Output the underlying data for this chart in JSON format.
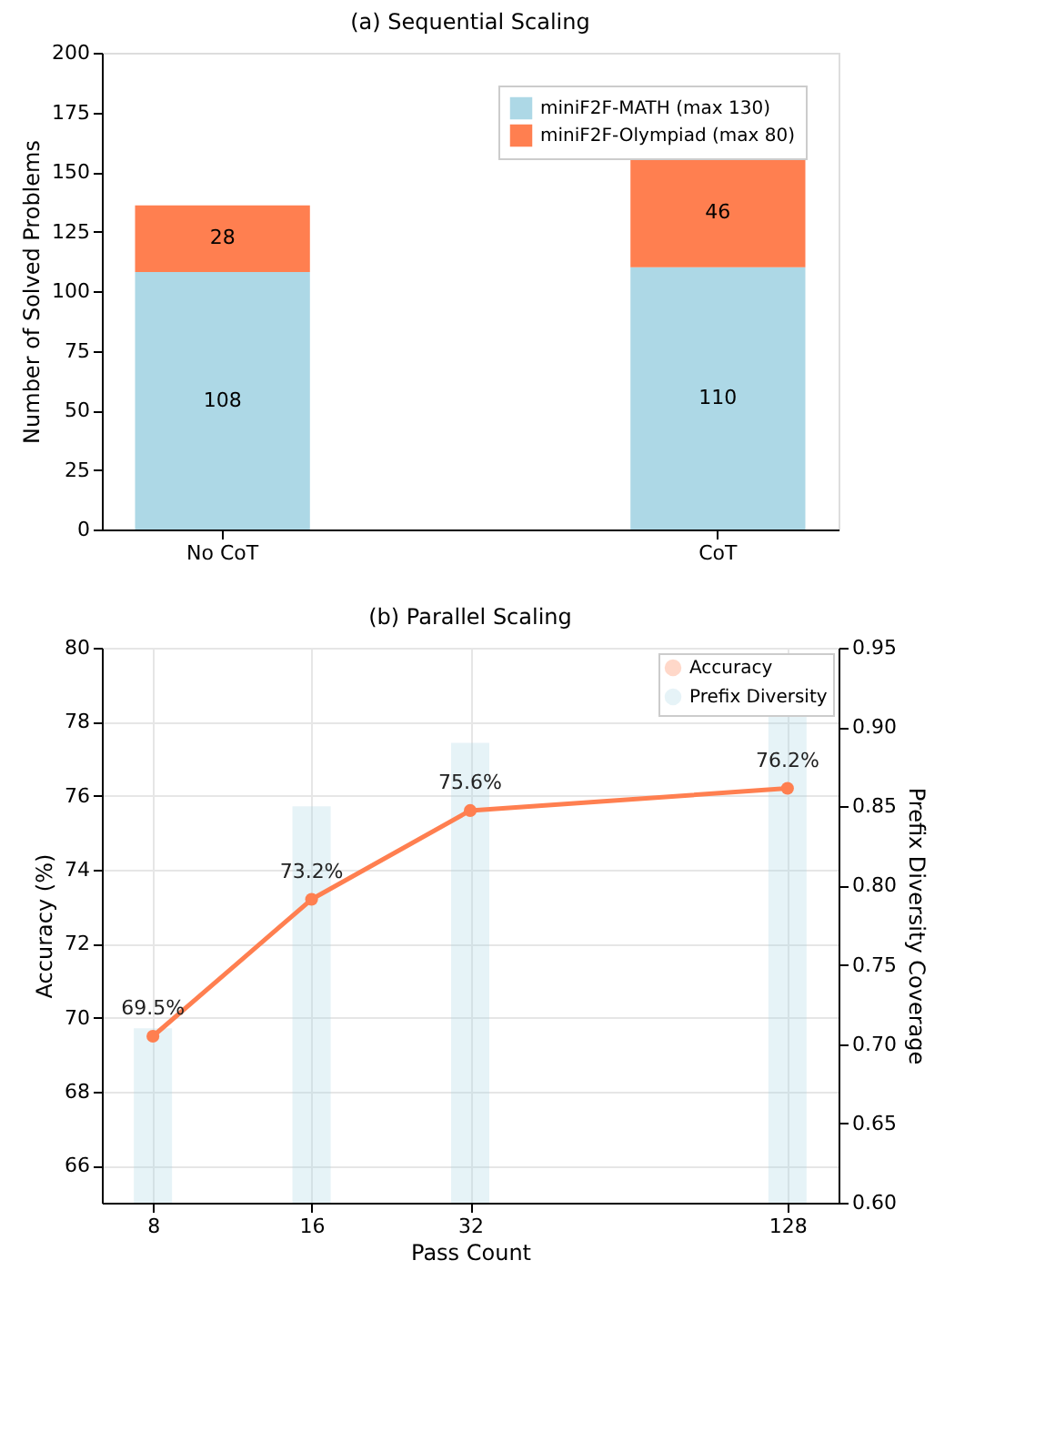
{
  "chart_data": [
    {
      "type": "bar",
      "title": "(a) Sequential Scaling",
      "ylabel": "Number of Solved Problems",
      "categories": [
        "No CoT",
        "CoT"
      ],
      "stacked": true,
      "data_labels": true,
      "legend": "top right",
      "ylim": [
        0,
        200
      ],
      "yticks": [
        0,
        25,
        50,
        75,
        100,
        125,
        150,
        175,
        200
      ],
      "series": [
        {
          "name": "miniF2F-MATH (max 130)",
          "color": "#add8e6",
          "values": [
            108,
            110
          ]
        },
        {
          "name": "miniF2F-Olympiad (max 80)",
          "color": "#ff7f50",
          "values": [
            28,
            46
          ]
        }
      ]
    },
    {
      "type": "line",
      "title": "(b) Parallel Scaling",
      "xlabel": "Pass Count",
      "ylabel": "Accuracy (%)",
      "y2label": "Prefix Diversity Coverage",
      "x": [
        8,
        16,
        32,
        128
      ],
      "log": "x",
      "xlim": [
        6.4,
        160
      ],
      "xticks": [
        8,
        16,
        32,
        128
      ],
      "ylim": [
        65,
        80
      ],
      "yticks": [
        66,
        68,
        70,
        72,
        74,
        76,
        78,
        80
      ],
      "y2lim": [
        0.6,
        0.95
      ],
      "y2ticks": [
        {
          "value": 0.6,
          "label": "0.60"
        },
        {
          "value": 0.65,
          "label": "0.65"
        },
        {
          "value": 0.7,
          "label": "0.70"
        },
        {
          "value": 0.75,
          "label": "0.75"
        },
        {
          "value": 0.8,
          "label": "0.80"
        },
        {
          "value": 0.85,
          "label": "0.85"
        },
        {
          "value": 0.9,
          "label": "0.90"
        },
        {
          "value": 0.95,
          "label": "0.95"
        }
      ],
      "grid": true,
      "legend": "top right",
      "marker": "circle",
      "series": [
        {
          "name": "Accuracy",
          "type": "line",
          "color": "#ff7f50",
          "values": [
            69.5,
            73.2,
            75.6,
            76.2
          ],
          "value_labels": [
            "69.5%",
            "73.2%",
            "75.6%",
            "76.2%"
          ]
        },
        {
          "name": "Prefix Diversity",
          "type": "bar",
          "axis": "y2",
          "color": "#add8e6",
          "values": [
            0.71,
            0.85,
            0.89,
            0.91
          ]
        }
      ]
    }
  ]
}
